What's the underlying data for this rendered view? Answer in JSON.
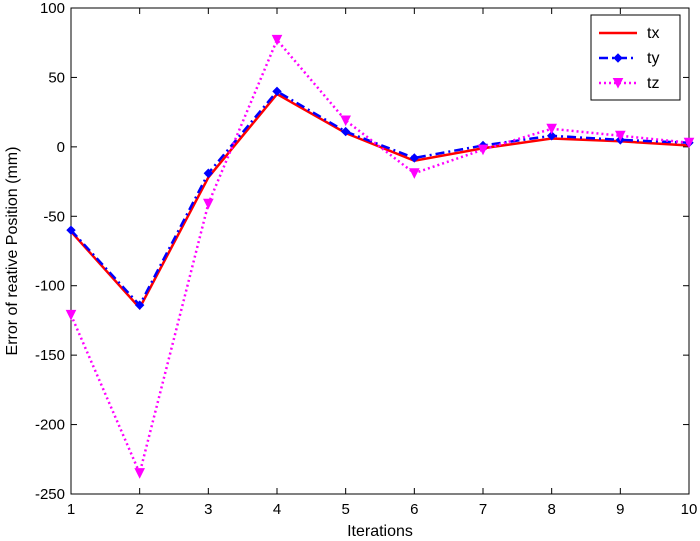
{
  "chart_data": {
    "type": "line",
    "title": "",
    "xlabel": "Iterations",
    "ylabel": "Error of reative Position (mm)",
    "x": [
      1,
      2,
      3,
      4,
      5,
      6,
      7,
      8,
      9,
      10
    ],
    "xlim": [
      1,
      10
    ],
    "ylim": [
      -250,
      100
    ],
    "xticks": [
      1,
      2,
      3,
      4,
      5,
      6,
      7,
      8,
      9,
      10
    ],
    "yticks": [
      100,
      50,
      0,
      -50,
      -100,
      -150,
      -200,
      -250
    ],
    "grid": false,
    "legend_position": "top-right",
    "series": [
      {
        "name": "tx",
        "color": "#ff0000",
        "line_style": "solid",
        "marker": "none",
        "values": [
          -61,
          -116,
          -22,
          38,
          10,
          -10,
          -1,
          6,
          4,
          1
        ]
      },
      {
        "name": "ty",
        "color": "#0000ff",
        "line_style": "dash-dot",
        "marker": "diamond",
        "values": [
          -60,
          -114,
          -19,
          40,
          11,
          -8,
          1,
          8,
          5,
          3
        ]
      },
      {
        "name": "tz",
        "color": "#ff00ff",
        "line_style": "dotted",
        "marker": "triangle-down",
        "values": [
          -121,
          -235,
          -41,
          77,
          19,
          -19,
          -2,
          13,
          8,
          3
        ]
      }
    ]
  }
}
